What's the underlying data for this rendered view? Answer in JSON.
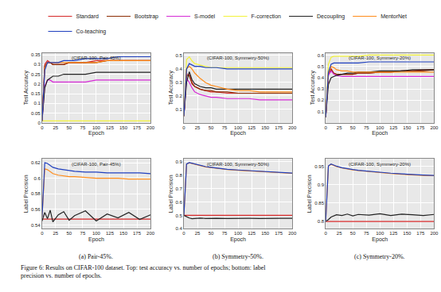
{
  "chart_data": [
    {
      "type": "line",
      "title": "(CIFAR-100, Pair-45%)",
      "x_label": "Epoch",
      "y_label": "Test Accuracy",
      "legend": "top",
      "grid": true,
      "x": [
        0,
        5,
        10,
        15,
        20,
        30,
        40,
        50,
        60,
        80,
        100,
        120,
        140,
        160,
        180,
        200
      ],
      "xlim": [
        0,
        200
      ],
      "xticks": [
        0,
        25,
        50,
        75,
        100,
        125,
        150,
        175,
        200
      ],
      "ylim": [
        0,
        0.36
      ],
      "yticks": [
        0,
        0.05,
        0.1,
        0.15,
        0.2,
        0.25,
        0.3,
        0.35
      ],
      "series": [
        {
          "name": "Standard",
          "color": "#d62728",
          "values": [
            0.01,
            0.3,
            0.32,
            0.31,
            0.3,
            0.3,
            0.3,
            0.31,
            0.31,
            0.31,
            0.32,
            0.32,
            0.32,
            0.32,
            0.32,
            0.32
          ]
        },
        {
          "name": "Bootstrap",
          "color": "#8c2d04",
          "values": [
            0.01,
            0.29,
            0.31,
            0.31,
            0.3,
            0.3,
            0.3,
            0.31,
            0.31,
            0.31,
            0.31,
            0.32,
            0.32,
            0.32,
            0.32,
            0.32
          ]
        },
        {
          "name": "S-model",
          "color": "#d62ad6",
          "values": [
            0.01,
            0.19,
            0.22,
            0.22,
            0.21,
            0.21,
            0.21,
            0.21,
            0.21,
            0.21,
            0.22,
            0.22,
            0.22,
            0.22,
            0.22,
            0.22
          ]
        },
        {
          "name": "F-correction",
          "color": "#f2f23a",
          "values": [
            0.01,
            0.01,
            0.01,
            0.01,
            0.01,
            0.01,
            0.01,
            0.01,
            0.01,
            0.01,
            0.01,
            0.01,
            0.01,
            0.01,
            0.01,
            0.01
          ]
        },
        {
          "name": "Decoupling",
          "color": "#222222",
          "values": [
            0.01,
            0.18,
            0.22,
            0.23,
            0.24,
            0.24,
            0.25,
            0.25,
            0.25,
            0.25,
            0.26,
            0.26,
            0.26,
            0.26,
            0.26,
            0.26
          ]
        },
        {
          "name": "MentorNet",
          "color": "#ff8c1a",
          "values": [
            0.01,
            0.28,
            0.31,
            0.31,
            0.31,
            0.31,
            0.31,
            0.31,
            0.31,
            0.31,
            0.31,
            0.32,
            0.32,
            0.32,
            0.32,
            0.32
          ]
        },
        {
          "name": "Co-teaching",
          "color": "#1f3fbf",
          "values": [
            0.01,
            0.27,
            0.31,
            0.31,
            0.31,
            0.31,
            0.32,
            0.32,
            0.32,
            0.33,
            0.33,
            0.33,
            0.34,
            0.34,
            0.34,
            0.34
          ]
        }
      ]
    },
    {
      "type": "line",
      "title": "(CIFAR-100, Symmetry-50%)",
      "x_label": "Epoch",
      "y_label": "Test Accuracy",
      "grid": true,
      "x": [
        0,
        5,
        10,
        15,
        20,
        30,
        40,
        50,
        60,
        80,
        100,
        120,
        140,
        160,
        180,
        200
      ],
      "xlim": [
        0,
        200
      ],
      "xticks": [
        0,
        25,
        50,
        75,
        100,
        125,
        150,
        175,
        200
      ],
      "ylim": [
        0,
        0.52
      ],
      "yticks": [
        0.1,
        0.2,
        0.3,
        0.4,
        0.5
      ],
      "series": [
        {
          "name": "Standard",
          "color": "#d62728",
          "values": [
            0.05,
            0.36,
            0.36,
            0.3,
            0.27,
            0.25,
            0.24,
            0.23,
            0.23,
            0.22,
            0.22,
            0.22,
            0.22,
            0.22,
            0.22,
            0.22
          ]
        },
        {
          "name": "Bootstrap",
          "color": "#8c2d04",
          "values": [
            0.05,
            0.35,
            0.35,
            0.29,
            0.27,
            0.25,
            0.24,
            0.24,
            0.23,
            0.23,
            0.22,
            0.22,
            0.22,
            0.22,
            0.22,
            0.22
          ]
        },
        {
          "name": "S-model",
          "color": "#d62ad6",
          "values": [
            0.05,
            0.33,
            0.3,
            0.26,
            0.23,
            0.21,
            0.2,
            0.19,
            0.19,
            0.18,
            0.18,
            0.18,
            0.17,
            0.17,
            0.17,
            0.17
          ]
        },
        {
          "name": "F-correction",
          "color": "#f2f23a",
          "values": [
            0.05,
            0.47,
            0.49,
            0.46,
            0.44,
            0.43,
            0.42,
            0.41,
            0.41,
            0.41,
            0.41,
            0.41,
            0.41,
            0.41,
            0.41,
            0.41
          ]
        },
        {
          "name": "Decoupling",
          "color": "#222222",
          "values": [
            0.05,
            0.3,
            0.38,
            0.32,
            0.29,
            0.27,
            0.26,
            0.26,
            0.25,
            0.25,
            0.25,
            0.25,
            0.25,
            0.25,
            0.25,
            0.25
          ]
        },
        {
          "name": "MentorNet",
          "color": "#ff8c1a",
          "values": [
            0.05,
            0.4,
            0.42,
            0.4,
            0.37,
            0.33,
            0.3,
            0.28,
            0.27,
            0.25,
            0.24,
            0.24,
            0.23,
            0.23,
            0.23,
            0.23
          ]
        },
        {
          "name": "Co-teaching",
          "color": "#1f3fbf",
          "values": [
            0.05,
            0.4,
            0.44,
            0.43,
            0.42,
            0.42,
            0.41,
            0.41,
            0.41,
            0.4,
            0.4,
            0.4,
            0.4,
            0.4,
            0.4,
            0.4
          ]
        }
      ]
    },
    {
      "type": "line",
      "title": "(CIFAR-100, Symmetry-20%)",
      "x_label": "Epoch",
      "y_label": "Test Accuracy",
      "grid": true,
      "x": [
        0,
        5,
        10,
        15,
        20,
        30,
        40,
        50,
        60,
        80,
        100,
        120,
        140,
        160,
        180,
        200
      ],
      "xlim": [
        0,
        200
      ],
      "xticks": [
        0,
        25,
        50,
        75,
        100,
        125,
        150,
        175,
        200
      ],
      "ylim": [
        0,
        0.62
      ],
      "yticks": [
        0.1,
        0.2,
        0.3,
        0.4,
        0.5,
        0.6
      ],
      "series": [
        {
          "name": "Standard",
          "color": "#d62728",
          "values": [
            0.05,
            0.44,
            0.48,
            0.44,
            0.43,
            0.43,
            0.43,
            0.43,
            0.44,
            0.44,
            0.45,
            0.45,
            0.46,
            0.46,
            0.47,
            0.47
          ]
        },
        {
          "name": "Bootstrap",
          "color": "#8c2d04",
          "values": [
            0.05,
            0.43,
            0.47,
            0.44,
            0.43,
            0.43,
            0.43,
            0.43,
            0.44,
            0.44,
            0.45,
            0.45,
            0.46,
            0.46,
            0.46,
            0.47
          ]
        },
        {
          "name": "S-model",
          "color": "#d62ad6",
          "values": [
            0.05,
            0.42,
            0.46,
            0.43,
            0.42,
            0.41,
            0.41,
            0.41,
            0.41,
            0.41,
            0.41,
            0.41,
            0.41,
            0.41,
            0.41,
            0.41
          ]
        },
        {
          "name": "F-correction",
          "color": "#f2f23a",
          "values": [
            0.05,
            0.52,
            0.58,
            0.59,
            0.59,
            0.59,
            0.59,
            0.59,
            0.59,
            0.6,
            0.6,
            0.6,
            0.6,
            0.6,
            0.6,
            0.6
          ]
        },
        {
          "name": "Decoupling",
          "color": "#222222",
          "values": [
            0.05,
            0.34,
            0.4,
            0.41,
            0.42,
            0.43,
            0.44,
            0.44,
            0.45,
            0.45,
            0.46,
            0.46,
            0.46,
            0.47,
            0.47,
            0.47
          ]
        },
        {
          "name": "MentorNet",
          "color": "#ff8c1a",
          "values": [
            0.05,
            0.44,
            0.5,
            0.49,
            0.47,
            0.46,
            0.46,
            0.45,
            0.45,
            0.45,
            0.45,
            0.45,
            0.45,
            0.45,
            0.45,
            0.45
          ]
        },
        {
          "name": "Co-teaching",
          "color": "#1f3fbf",
          "values": [
            0.05,
            0.45,
            0.52,
            0.53,
            0.53,
            0.53,
            0.53,
            0.53,
            0.53,
            0.54,
            0.54,
            0.54,
            0.54,
            0.54,
            0.54,
            0.54
          ]
        }
      ]
    },
    {
      "type": "line",
      "title": "(CIFAR-100, Pair-45%)",
      "x_label": "Epoch",
      "y_label": "Label Precision",
      "grid": true,
      "x": [
        0,
        5,
        10,
        15,
        20,
        30,
        40,
        50,
        60,
        80,
        100,
        120,
        140,
        160,
        180,
        200
      ],
      "xlim": [
        0,
        200
      ],
      "xticks": [
        0,
        25,
        50,
        75,
        100,
        125,
        150,
        175,
        200
      ],
      "ylim": [
        0.535,
        0.625
      ],
      "yticks": [
        0.54,
        0.56,
        0.58,
        0.6,
        0.62
      ],
      "series": [
        {
          "name": "Standard",
          "color": "#d62728",
          "values": [
            0.5475,
            0.5475,
            0.5475,
            0.5475,
            0.5475,
            0.5475,
            0.5475,
            0.5475,
            0.5475,
            0.5475,
            0.5475,
            0.5475,
            0.5475,
            0.5475,
            0.5475,
            0.5475
          ]
        },
        {
          "name": "Decoupling",
          "color": "#222222",
          "values": [
            0.545,
            0.556,
            0.548,
            0.559,
            0.544,
            0.553,
            0.557,
            0.546,
            0.552,
            0.558,
            0.545,
            0.554,
            0.549,
            0.556,
            0.547,
            0.553
          ]
        },
        {
          "name": "MentorNet",
          "color": "#ff8c1a",
          "values": [
            0.55,
            0.612,
            0.611,
            0.608,
            0.606,
            0.604,
            0.603,
            0.602,
            0.602,
            0.601,
            0.6,
            0.6,
            0.6,
            0.599,
            0.599,
            0.599
          ]
        },
        {
          "name": "Co-teaching",
          "color": "#1f3fbf",
          "values": [
            0.55,
            0.62,
            0.619,
            0.616,
            0.614,
            0.612,
            0.611,
            0.61,
            0.609,
            0.608,
            0.608,
            0.607,
            0.607,
            0.607,
            0.607,
            0.606
          ]
        }
      ]
    },
    {
      "type": "line",
      "title": "(CIFAR-100, Symmetry-50%)",
      "x_label": "Epoch",
      "y_label": "Label Precision",
      "grid": true,
      "x": [
        0,
        5,
        10,
        15,
        20,
        30,
        40,
        50,
        60,
        80,
        100,
        120,
        140,
        160,
        180,
        200
      ],
      "xlim": [
        0,
        200
      ],
      "xticks": [
        0,
        25,
        50,
        75,
        100,
        125,
        150,
        175,
        200
      ],
      "ylim": [
        0.4,
        0.92
      ],
      "yticks": [
        0.4,
        0.5,
        0.6,
        0.7,
        0.8,
        0.9
      ],
      "series": [
        {
          "name": "Standard",
          "color": "#d62728",
          "values": [
            0.5,
            0.5,
            0.5,
            0.5,
            0.5,
            0.5,
            0.5,
            0.5,
            0.5,
            0.5,
            0.5,
            0.5,
            0.5,
            0.5,
            0.5,
            0.5
          ]
        },
        {
          "name": "Decoupling",
          "color": "#222222",
          "values": [
            0.5,
            0.49,
            0.48,
            0.475,
            0.478,
            0.48,
            0.477,
            0.479,
            0.478,
            0.477,
            0.479,
            0.478,
            0.477,
            0.479,
            0.478,
            0.478
          ]
        },
        {
          "name": "MentorNet",
          "color": "#ff8c1a",
          "values": [
            0.5,
            0.88,
            0.89,
            0.885,
            0.88,
            0.87,
            0.86,
            0.855,
            0.85,
            0.84,
            0.835,
            0.83,
            0.825,
            0.82,
            0.815,
            0.812
          ]
        },
        {
          "name": "Co-teaching",
          "color": "#1f3fbf",
          "values": [
            0.5,
            0.882,
            0.892,
            0.887,
            0.882,
            0.872,
            0.862,
            0.857,
            0.852,
            0.842,
            0.837,
            0.832,
            0.827,
            0.822,
            0.817,
            0.814
          ]
        }
      ]
    },
    {
      "type": "line",
      "title": "(CIFAR-100, Symmetry-20%)",
      "x_label": "Epoch",
      "y_label": "Label Precision",
      "grid": true,
      "x": [
        0,
        5,
        10,
        15,
        20,
        30,
        40,
        50,
        60,
        80,
        100,
        120,
        140,
        160,
        180,
        200
      ],
      "xlim": [
        0,
        200
      ],
      "xticks": [
        0,
        25,
        50,
        75,
        100,
        125,
        150,
        175,
        200
      ],
      "ylim": [
        0.78,
        0.97
      ],
      "yticks": [
        0.8,
        0.85,
        0.9,
        0.95
      ],
      "series": [
        {
          "name": "Standard",
          "color": "#d62728",
          "values": [
            0.8,
            0.8,
            0.8,
            0.8,
            0.8,
            0.8,
            0.8,
            0.8,
            0.8,
            0.8,
            0.8,
            0.8,
            0.8,
            0.8,
            0.8,
            0.8
          ]
        },
        {
          "name": "Decoupling",
          "color": "#222222",
          "values": [
            0.8,
            0.805,
            0.812,
            0.815,
            0.818,
            0.816,
            0.82,
            0.815,
            0.819,
            0.817,
            0.821,
            0.816,
            0.82,
            0.818,
            0.816,
            0.819
          ]
        },
        {
          "name": "MentorNet",
          "color": "#ff8c1a",
          "values": [
            0.8,
            0.95,
            0.955,
            0.952,
            0.949,
            0.945,
            0.942,
            0.94,
            0.938,
            0.935,
            0.932,
            0.93,
            0.928,
            0.926,
            0.925,
            0.924
          ]
        },
        {
          "name": "Co-teaching",
          "color": "#1f3fbf",
          "values": [
            0.8,
            0.951,
            0.956,
            0.953,
            0.95,
            0.946,
            0.943,
            0.941,
            0.939,
            0.936,
            0.933,
            0.931,
            0.929,
            0.927,
            0.926,
            0.925
          ]
        }
      ]
    }
  ],
  "subcaptions": [
    "(a) Pair-45%.",
    "(b) Symmetry-50%.",
    "(c) Symmetry-20%."
  ],
  "caption": [
    "Figure 6: Results on CIFAR-100 dataset. Top: test accuracy vs. number of epochs; bottom: label",
    "precision vs. number of epochs."
  ]
}
